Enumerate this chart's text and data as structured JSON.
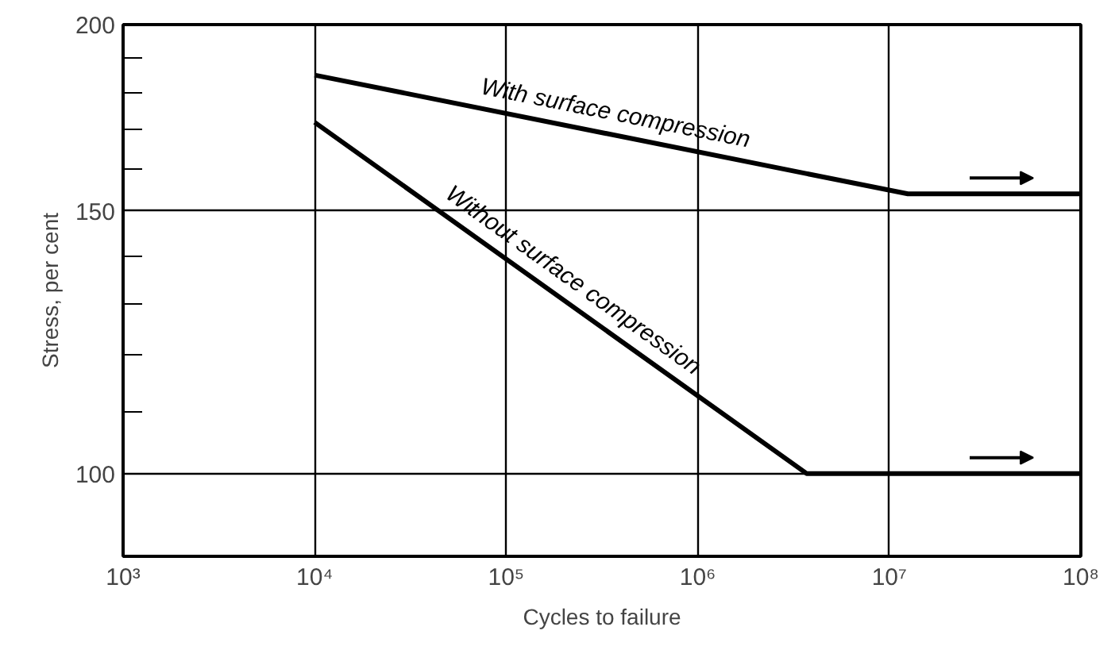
{
  "chart_data": {
    "type": "line",
    "xlabel": "Cycles to failure",
    "ylabel": "Stress, per cent",
    "log": "xy",
    "grid": true,
    "marker": "none",
    "line_style": "solid",
    "xlim": [
      1000,
      100000000
    ],
    "ylim": [
      88,
      200
    ],
    "xticks": [
      {
        "value": 1000,
        "label": "10³"
      },
      {
        "value": 10000,
        "label": "10⁴"
      },
      {
        "value": 100000,
        "label": "10⁵"
      },
      {
        "value": 1000000,
        "label": "10⁶"
      },
      {
        "value": 10000000,
        "label": "10⁷"
      },
      {
        "value": 100000000,
        "label": "10⁸"
      }
    ],
    "yticks": [
      100,
      {
        "value": 110,
        "label": null
      },
      {
        "value": 120,
        "label": null
      },
      {
        "value": 130,
        "label": null
      },
      {
        "value": 140,
        "label": null
      },
      150,
      {
        "value": 160,
        "label": null
      },
      {
        "value": 170,
        "label": null
      },
      {
        "value": 180,
        "label": null
      },
      {
        "value": 190,
        "label": null
      },
      200
    ],
    "series": [
      {
        "name": "With surface compression",
        "color": "#000000",
        "x": [
          10000,
          12500000,
          100000000
        ],
        "values": [
          185,
          154,
          154
        ]
      },
      {
        "name": "Without surface compression",
        "color": "#000000",
        "x": [
          10000,
          3700000,
          100000000
        ],
        "values": [
          172,
          100,
          100
        ]
      }
    ]
  }
}
